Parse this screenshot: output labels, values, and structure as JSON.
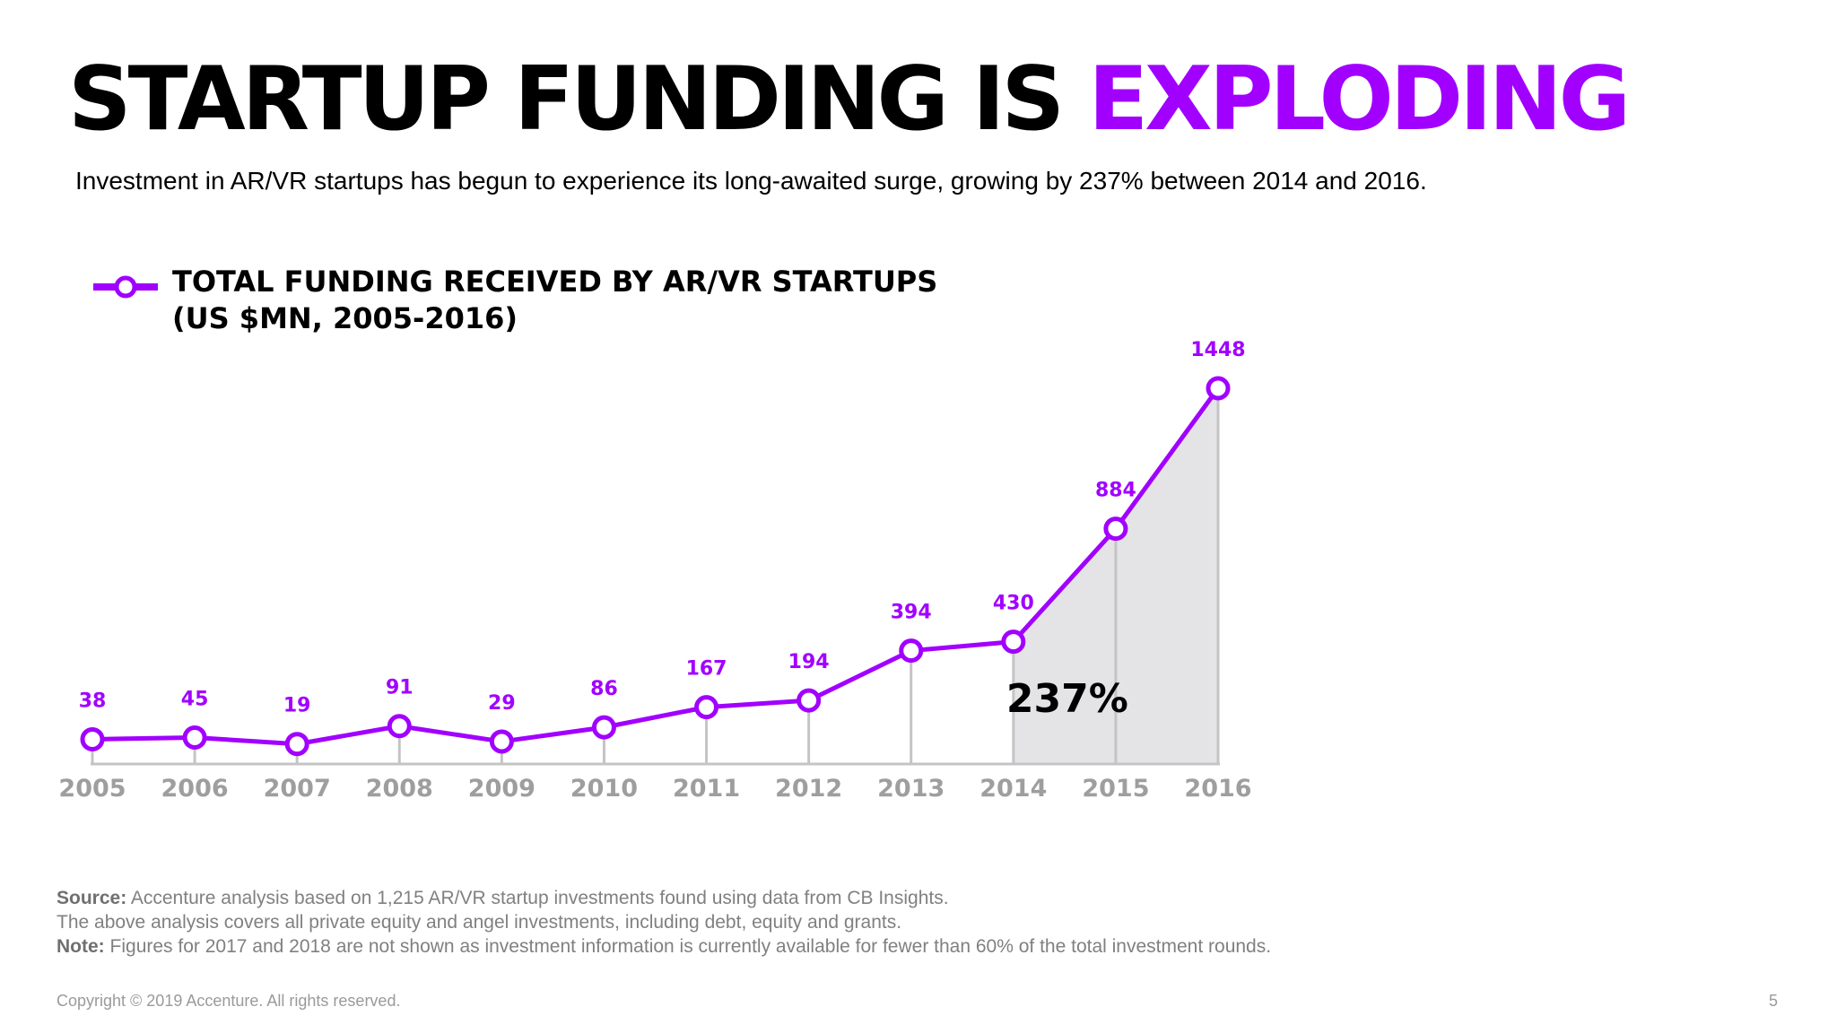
{
  "slide": {
    "title_main": "STARTUP FUNDING IS",
    "title_accent": "EXPLODING",
    "subtitle": "Investment in AR/VR startups has begun to experience its long-awaited surge, growing by 237% between 2014 and 2016.",
    "legend_line1": "TOTAL FUNDING RECEIVED BY AR/VR STARTUPS",
    "legend_line2": "(US $MN, 2005-2016)",
    "source_label": "Source:",
    "source_text": "Accenture analysis based on 1,215 AR/VR startup investments found using data from CB Insights.",
    "analysis_text": "The above analysis covers all private equity and angel investments, including debt, equity and grants.",
    "note_label": "Note:",
    "note_text": "Figures for 2017 and 2018 are not shown as investment information is currently available for fewer than 60% of the total investment rounds.",
    "copyright": "Copyright © 2019 Accenture. All rights reserved.",
    "page_number": "5"
  },
  "colors": {
    "accent": "#a100ff",
    "axis_label": "#9e9e9e",
    "shaded_area": "#e4e4e7",
    "drop_line": "#c4c4c4"
  },
  "chart_data": {
    "type": "line",
    "title": "TOTAL FUNDING RECEIVED BY AR/VR STARTUPS (US $MN, 2005-2016)",
    "xlabel": "",
    "ylabel": "US $MN",
    "categories": [
      "2005",
      "2006",
      "2007",
      "2008",
      "2009",
      "2010",
      "2011",
      "2012",
      "2013",
      "2014",
      "2015",
      "2016"
    ],
    "series": [
      {
        "name": "Total funding received by AR/VR startups",
        "values": [
          38,
          45,
          19,
          91,
          29,
          86,
          167,
          194,
          394,
          430,
          884,
          1448
        ]
      }
    ],
    "ylim": [
      0,
      1448
    ],
    "grid": false,
    "legend": "top-left",
    "shaded_range": [
      "2014",
      "2016"
    ],
    "annotation": "237%"
  }
}
